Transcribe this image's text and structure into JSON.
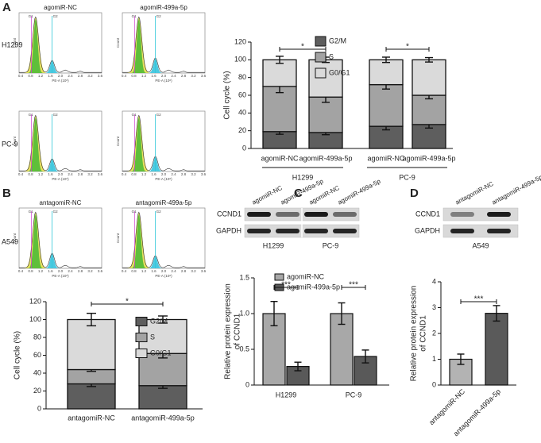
{
  "panels": [
    "A",
    "B",
    "C",
    "D"
  ],
  "flow": {
    "xlabel": "PE-A (10⁶)",
    "ylabel": "Count",
    "peaks": [
      "G1",
      "G2"
    ],
    "xticks": [
      "0.4",
      "0.8",
      "1.2",
      "1.6",
      "2.0",
      "2.4",
      "2.8",
      "3.2",
      "3.6"
    ],
    "columns_A": [
      "agomiR-NC",
      "agomiR-499a-5p"
    ],
    "rows_A": [
      "H1299",
      "PC-9"
    ],
    "columns_B": [
      "antagomiR-NC",
      "antagomiR-499a-5p"
    ],
    "rows_B": [
      "A549"
    ]
  },
  "blots": {
    "C": {
      "lanes": [
        "agomiR-NC",
        "agomiR-499a-5p",
        "agomiR-NC",
        "agomiR-499a-5p"
      ],
      "proteins": [
        "CCND1",
        "GAPDH"
      ],
      "cells": [
        "H1299",
        "PC-9"
      ]
    },
    "D": {
      "lanes": [
        "antagomiR-NC",
        "antagomiR-499a-5p"
      ],
      "proteins": [
        "CCND1",
        "GAPDH"
      ],
      "cells": [
        "A549"
      ]
    }
  },
  "chart_data": [
    {
      "type": "bar",
      "stacked": true,
      "ylabel": "Cell cycle (%)",
      "categories": [
        "agomiR-NC",
        "agomiR-499a-5p",
        "agomiR-NC",
        "agomiR-499a-5p"
      ],
      "groups": [
        "H1299",
        "PC-9"
      ],
      "series": [
        {
          "name": "G2/M",
          "color": "#5e5e5e",
          "values": [
            19,
            18,
            25,
            27
          ],
          "errors": [
            3,
            2.5,
            4,
            4
          ]
        },
        {
          "name": "S",
          "color": "#a3a3a3",
          "values": [
            51,
            40,
            47,
            33
          ],
          "errors": [
            7,
            6,
            5,
            4
          ]
        },
        {
          "name": "G0/G1",
          "color": "#dadada",
          "values": [
            30,
            42,
            28,
            40
          ],
          "errors": [
            4,
            3,
            3,
            2.5
          ]
        }
      ],
      "ylim": [
        0,
        120
      ],
      "yticks": [
        0,
        20,
        40,
        60,
        80,
        100,
        120
      ],
      "annotations": [
        "*",
        "*"
      ]
    },
    {
      "type": "bar",
      "stacked": true,
      "ylabel": "Cell cycle (%)",
      "categories": [
        "antagomiR-NC",
        "antagomiR-499a-5p"
      ],
      "series": [
        {
          "name": "G2/M",
          "color": "#5e5e5e",
          "values": [
            28,
            26
          ],
          "errors": [
            3,
            3
          ]
        },
        {
          "name": "S",
          "color": "#a3a3a3",
          "values": [
            16,
            36
          ],
          "errors": [
            2,
            5
          ]
        },
        {
          "name": "G0/G1",
          "color": "#dadada",
          "values": [
            56,
            38
          ],
          "errors": [
            7,
            4
          ]
        }
      ],
      "ylim": [
        0,
        120
      ],
      "yticks": [
        0,
        20,
        40,
        60,
        80,
        100,
        120
      ],
      "annotations": [
        "*"
      ]
    },
    {
      "type": "bar",
      "stacked": false,
      "ylabel": [
        "Relative protein expression",
        "of CCND1"
      ],
      "categories": [
        "H1299",
        "PC-9"
      ],
      "series": [
        {
          "name": "agomiR-NC",
          "color": "#a8a8a8",
          "values": [
            1.0,
            1.0
          ],
          "errors": [
            0.17,
            0.15
          ]
        },
        {
          "name": "agomiR-499a-5p",
          "color": "#595959",
          "values": [
            0.26,
            0.4
          ],
          "errors": [
            0.06,
            0.09
          ]
        }
      ],
      "ylim": [
        0,
        1.5
      ],
      "yticks": [
        0,
        0.5,
        {
          "value": 1,
          "label": "1.0"
        },
        1.5
      ],
      "annotations": [
        "***",
        "***"
      ]
    },
    {
      "type": "bar",
      "ylabel": [
        "Relative protein expression",
        "of CCND1"
      ],
      "categories": [
        "antagomiR-NC",
        "antagomiR-499a-5p"
      ],
      "values": [
        1.0,
        2.78
      ],
      "errors": [
        0.2,
        0.3
      ],
      "colors": [
        "#b3b3b3",
        "#5a5a5a"
      ],
      "ylim": [
        0,
        4
      ],
      "yticks": [
        0,
        1,
        2,
        3,
        4
      ],
      "annotations": [
        "***"
      ]
    }
  ]
}
